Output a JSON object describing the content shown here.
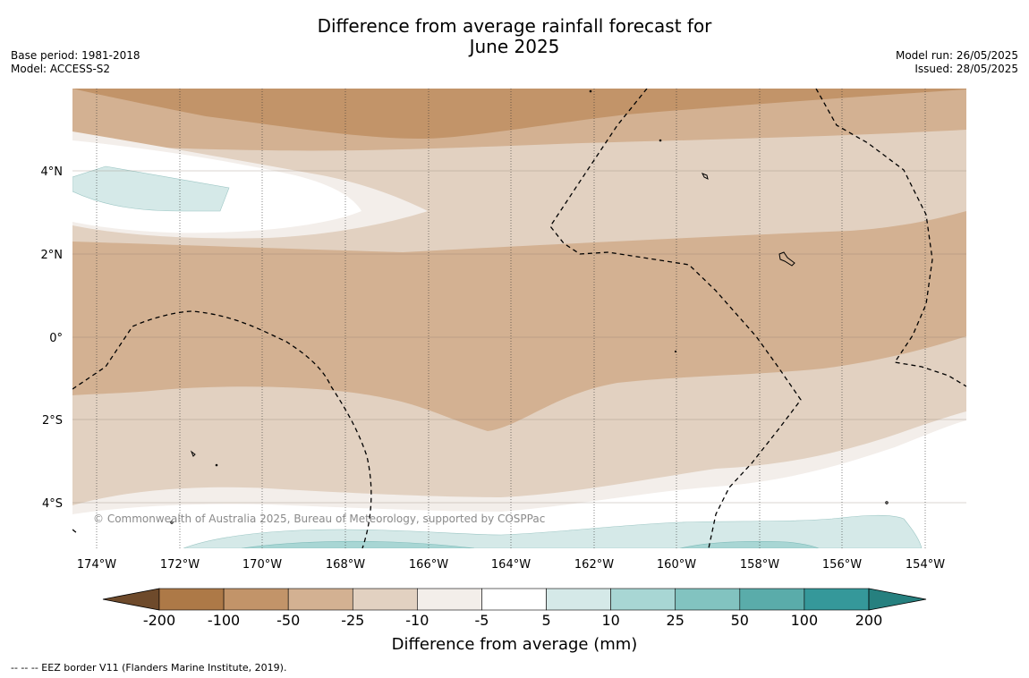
{
  "title": {
    "line1": "Difference from average rainfall forecast for",
    "line2": "June 2025"
  },
  "meta_left": {
    "base_period": "Base period: 1981-2018",
    "model": "Model: ACCESS-S2"
  },
  "meta_right": {
    "model_run": "Model run: 26/05/2025",
    "issued": "Issued: 28/05/2025"
  },
  "map": {
    "lon_labels": [
      "174°W",
      "172°W",
      "170°W",
      "168°W",
      "166°W",
      "164°W",
      "162°W",
      "160°W",
      "158°W",
      "156°W",
      "154°W"
    ],
    "lat_labels": [
      "4°N",
      "2°N",
      "0°",
      "2°S",
      "4°S"
    ],
    "copyright": "© Commonwealth of Australia 2025, Bureau of Meteorology, supported by COSPPac"
  },
  "colorbar": {
    "tick_labels": [
      "-200",
      "-100",
      "-50",
      "-25",
      "-10",
      "-5",
      "5",
      "10",
      "25",
      "50",
      "100",
      "200"
    ],
    "colors": [
      "#6e4a2b",
      "#ad7947",
      "#c29469",
      "#d3b192",
      "#e2d1c1",
      "#f3eeea",
      "#ffffff",
      "#d5e9e8",
      "#a8d6d4",
      "#82c3c0",
      "#5aacaa",
      "#35989a",
      "#26807f"
    ],
    "label": "Difference from average (mm)"
  },
  "footer": {
    "eez_legend": "--  --  -- EEZ border V11 (Flanders Marine Institute, 2019)."
  }
}
